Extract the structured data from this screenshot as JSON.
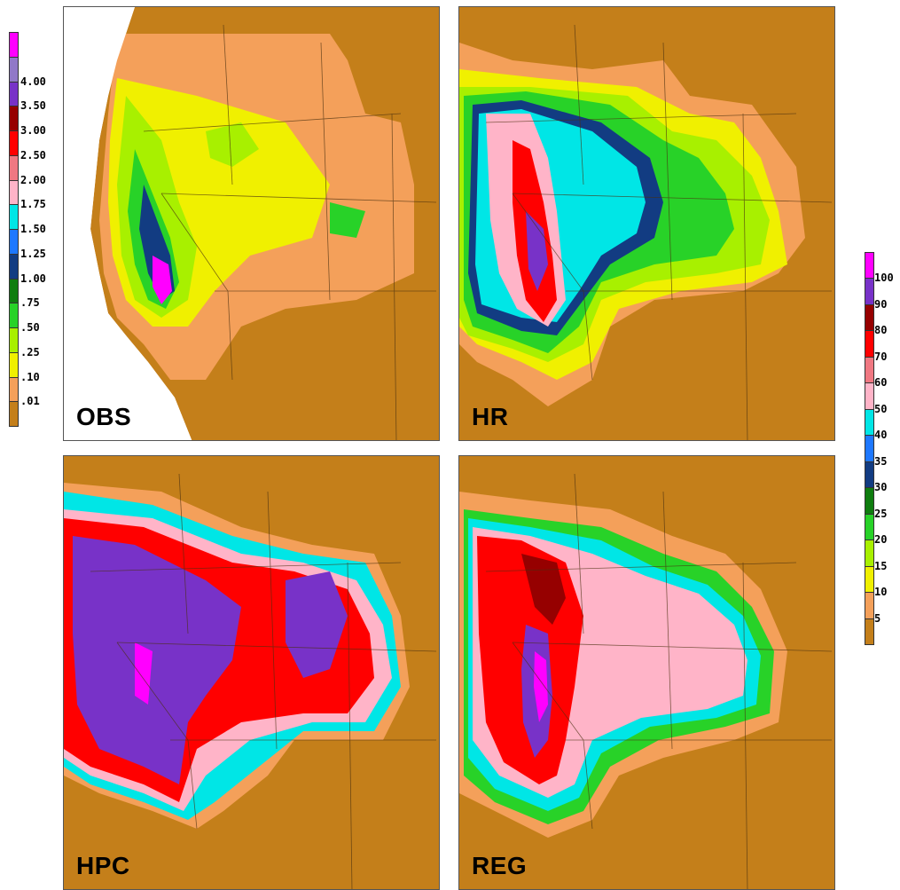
{
  "panels": [
    {
      "id": "obs",
      "label": "OBS"
    },
    {
      "id": "hr",
      "label": "HR"
    },
    {
      "id": "hpc",
      "label": "HPC"
    },
    {
      "id": "reg",
      "label": "REG"
    }
  ],
  "legend_left": {
    "colors": [
      "#c47f1a",
      "#f4a05a",
      "#f0f000",
      "#a8f000",
      "#28d228",
      "#0f7d0f",
      "#123c82",
      "#1e78ff",
      "#00e6e6",
      "#ffb4c8",
      "#f07882",
      "#ff0000",
      "#960000",
      "#7832c8",
      "#9178c8",
      "#ff00ff"
    ],
    "ticks": [
      ".01",
      ".10",
      ".25",
      ".50",
      ".75",
      "1.00",
      "1.25",
      "1.50",
      "1.75",
      "2.00",
      "2.50",
      "3.00",
      "3.50",
      "4.00"
    ]
  },
  "legend_right": {
    "colors": [
      "#c47f1a",
      "#f4a05a",
      "#f0f000",
      "#a8f000",
      "#28d228",
      "#0f7d0f",
      "#123c82",
      "#1e78ff",
      "#00e6e6",
      "#ffb4c8",
      "#f07882",
      "#ff0000",
      "#960000",
      "#7832c8",
      "#ff00ff"
    ],
    "ticks": [
      "5",
      "10",
      "15",
      "20",
      "25",
      "30",
      "35",
      "40",
      "50",
      "60",
      "70",
      "80",
      "90",
      "100"
    ]
  }
}
